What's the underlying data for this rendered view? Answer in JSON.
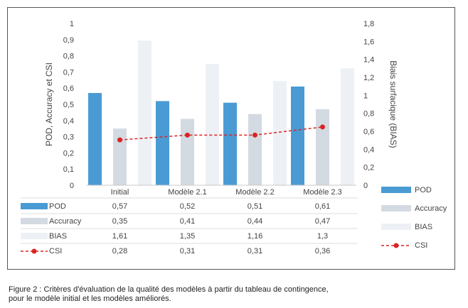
{
  "chart_data": {
    "type": "bar",
    "categories": [
      "Initial",
      "Modèle 2.1",
      "Modèle 2.2",
      "Modèle 2.3"
    ],
    "series": [
      {
        "name": "POD",
        "kind": "bar",
        "axis": "left",
        "color": "#4a9bd4",
        "values": [
          0.57,
          0.52,
          0.51,
          0.61
        ],
        "labels": [
          "0,57",
          "0,52",
          "0,51",
          "0,61"
        ]
      },
      {
        "name": "Accuracy",
        "kind": "bar",
        "axis": "left",
        "color": "#d3dae1",
        "values": [
          0.35,
          0.41,
          0.44,
          0.47
        ],
        "labels": [
          "0,35",
          "0,41",
          "0,44",
          "0,47"
        ]
      },
      {
        "name": "BIAS",
        "kind": "bar",
        "axis": "right",
        "color": "#edf1f5",
        "values": [
          1.61,
          1.35,
          1.16,
          1.3
        ],
        "labels": [
          "1,61",
          "1,35",
          "1,16",
          "1,3"
        ]
      },
      {
        "name": "CSI",
        "kind": "line",
        "axis": "left",
        "color": "#d92424",
        "values": [
          0.28,
          0.31,
          0.31,
          0.36
        ],
        "labels": [
          "0,28",
          "0,31",
          "0,31",
          "0,36"
        ]
      }
    ],
    "ylabel": "POD, Accuracy et CSI",
    "y2label": "Biais surfacique (BIAS)",
    "ylim": [
      0,
      1
    ],
    "y2lim": [
      0,
      1.8
    ],
    "yticks": [
      "0",
      "0,1",
      "0,2",
      "0,3",
      "0,4",
      "0,5",
      "0,6",
      "0,7",
      "0,8",
      "0,9",
      "1"
    ],
    "y2ticks": [
      "0",
      "0,2",
      "0,4",
      "0,6",
      "0,8",
      "1",
      "1,2",
      "1,4",
      "1,6",
      "1,8"
    ],
    "grid": false,
    "legend": "right"
  },
  "caption": {
    "line1": "Figure 2 : Critères d'évaluation de la qualité des modèles à partir du tableau de contingence,",
    "line2": "pour le modèle initial et les modèles améliorés."
  }
}
